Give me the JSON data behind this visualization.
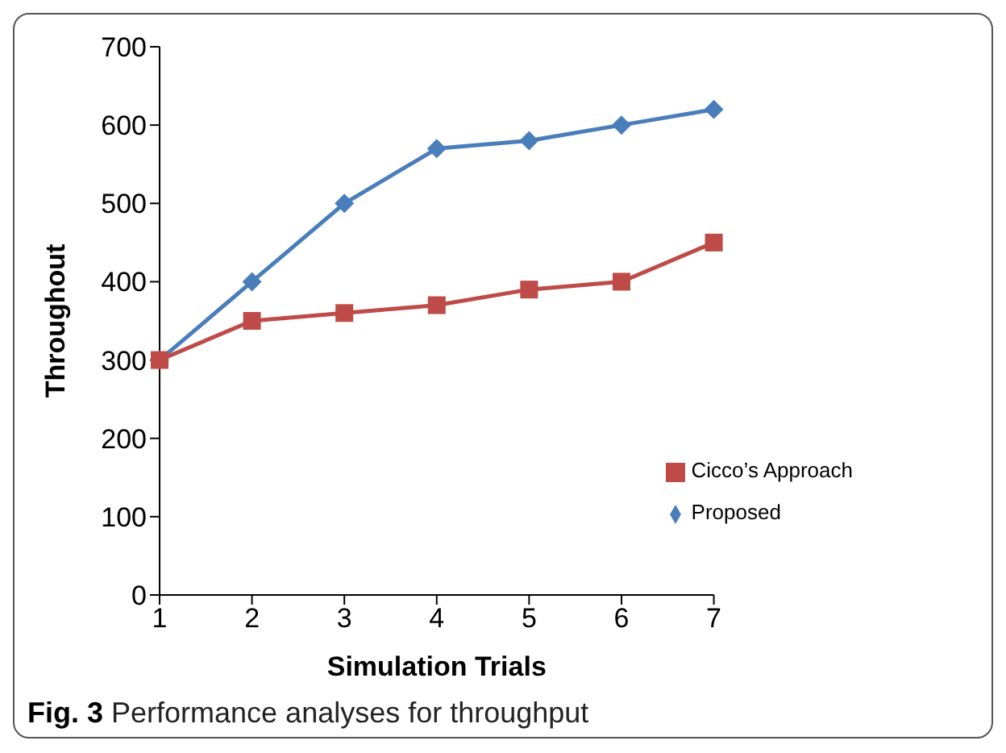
{
  "chart_data": {
    "type": "line",
    "xlabel": "Simulation Trials",
    "ylabel": "Throughout",
    "categories": [
      "1",
      "2",
      "3",
      "4",
      "5",
      "6",
      "7"
    ],
    "series": [
      {
        "name": "Proposed",
        "color": "#4a7ebb",
        "marker": "diamond",
        "values": [
          300,
          400,
          500,
          570,
          580,
          600,
          620
        ]
      },
      {
        "name": "Cicco’s Approach",
        "color": "#be4b48",
        "marker": "square",
        "values": [
          300,
          350,
          360,
          370,
          390,
          400,
          450
        ]
      }
    ],
    "ylim": [
      0,
      700
    ],
    "yticks": [
      0,
      100,
      200,
      300,
      400,
      500,
      600,
      700
    ],
    "grid": false,
    "legend": "right",
    "line_style": "solid",
    "annotations": [
      "Fig. 3 Performance analyses for throughput"
    ]
  }
}
